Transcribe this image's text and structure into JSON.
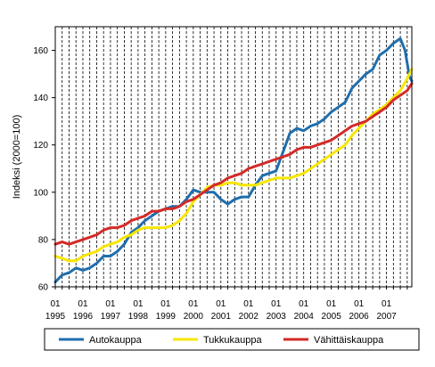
{
  "chart_data": {
    "type": "line",
    "ylabel": "Indeksi (2000=100)",
    "xlabel": "",
    "ylim": [
      60,
      170
    ],
    "yticks": [
      60,
      80,
      100,
      120,
      140,
      160
    ],
    "xlim": [
      1995.0,
      2007.917
    ],
    "xticks": [
      {
        "top": "01",
        "bottom": "1995"
      },
      {
        "top": "01",
        "bottom": "1996"
      },
      {
        "top": "01",
        "bottom": "1997"
      },
      {
        "top": "01",
        "bottom": "1998"
      },
      {
        "top": "01",
        "bottom": "1999"
      },
      {
        "top": "01",
        "bottom": "2000"
      },
      {
        "top": "01",
        "bottom": "2001"
      },
      {
        "top": "01",
        "bottom": "2002"
      },
      {
        "top": "01",
        "bottom": "2003"
      },
      {
        "top": "01",
        "bottom": "2004"
      },
      {
        "top": "01",
        "bottom": "2005"
      },
      {
        "top": "01",
        "bottom": "2006"
      },
      {
        "top": "01",
        "bottom": "2007"
      }
    ],
    "grid": "vertical dashed lines at each quarter",
    "legend_position": "bottom",
    "series": [
      {
        "name": "Autokauppa",
        "color": "#1f6ead",
        "points": [
          [
            1995.0,
            62
          ],
          [
            1995.25,
            65
          ],
          [
            1995.5,
            66
          ],
          [
            1995.75,
            68
          ],
          [
            1996.0,
            67
          ],
          [
            1996.25,
            68
          ],
          [
            1996.5,
            70
          ],
          [
            1996.75,
            73
          ],
          [
            1997.0,
            73
          ],
          [
            1997.25,
            75
          ],
          [
            1997.5,
            78
          ],
          [
            1997.75,
            83
          ],
          [
            1998.0,
            85
          ],
          [
            1998.25,
            88
          ],
          [
            1998.5,
            90
          ],
          [
            1998.75,
            92
          ],
          [
            1999.0,
            93
          ],
          [
            1999.25,
            94
          ],
          [
            1999.5,
            94
          ],
          [
            1999.75,
            97
          ],
          [
            2000.0,
            101
          ],
          [
            2000.25,
            100
          ],
          [
            2000.5,
            100
          ],
          [
            2000.75,
            100
          ],
          [
            2001.0,
            97
          ],
          [
            2001.25,
            95
          ],
          [
            2001.5,
            97
          ],
          [
            2001.75,
            98
          ],
          [
            2002.0,
            98
          ],
          [
            2002.25,
            103
          ],
          [
            2002.5,
            107
          ],
          [
            2002.75,
            108
          ],
          [
            2003.0,
            109
          ],
          [
            2003.25,
            117
          ],
          [
            2003.5,
            125
          ],
          [
            2003.75,
            127
          ],
          [
            2004.0,
            126
          ],
          [
            2004.25,
            128
          ],
          [
            2004.5,
            129
          ],
          [
            2004.75,
            131
          ],
          [
            2005.0,
            134
          ],
          [
            2005.25,
            136
          ],
          [
            2005.5,
            138
          ],
          [
            2005.75,
            144
          ],
          [
            2006.0,
            147
          ],
          [
            2006.25,
            150
          ],
          [
            2006.5,
            152
          ],
          [
            2006.75,
            158
          ],
          [
            2007.0,
            160
          ],
          [
            2007.25,
            163
          ],
          [
            2007.5,
            165
          ],
          [
            2007.67,
            160
          ],
          [
            2007.83,
            149
          ],
          [
            2007.917,
            147
          ]
        ]
      },
      {
        "name": "Tukkukauppa",
        "color": "#f7e600",
        "points": [
          [
            1995.0,
            73
          ],
          [
            1995.25,
            72
          ],
          [
            1995.5,
            71
          ],
          [
            1995.75,
            71
          ],
          [
            1996.0,
            73
          ],
          [
            1996.25,
            74
          ],
          [
            1996.5,
            75
          ],
          [
            1996.75,
            77
          ],
          [
            1997.0,
            78
          ],
          [
            1997.25,
            79
          ],
          [
            1997.5,
            81
          ],
          [
            1997.75,
            82
          ],
          [
            1998.0,
            84
          ],
          [
            1998.25,
            85
          ],
          [
            1998.5,
            85
          ],
          [
            1998.75,
            85
          ],
          [
            1999.0,
            85
          ],
          [
            1999.25,
            86
          ],
          [
            1999.5,
            88
          ],
          [
            1999.75,
            91
          ],
          [
            2000.0,
            96
          ],
          [
            2000.25,
            99
          ],
          [
            2000.5,
            102
          ],
          [
            2000.75,
            103
          ],
          [
            2001.0,
            103
          ],
          [
            2001.25,
            104
          ],
          [
            2001.5,
            104
          ],
          [
            2001.75,
            103
          ],
          [
            2002.0,
            103
          ],
          [
            2002.25,
            103
          ],
          [
            2002.5,
            104
          ],
          [
            2002.75,
            105
          ],
          [
            2003.0,
            106
          ],
          [
            2003.25,
            106
          ],
          [
            2003.5,
            106
          ],
          [
            2003.75,
            107
          ],
          [
            2004.0,
            108
          ],
          [
            2004.25,
            110
          ],
          [
            2004.5,
            112
          ],
          [
            2004.75,
            114
          ],
          [
            2005.0,
            116
          ],
          [
            2005.25,
            118
          ],
          [
            2005.5,
            120
          ],
          [
            2005.75,
            124
          ],
          [
            2006.0,
            127
          ],
          [
            2006.25,
            130
          ],
          [
            2006.5,
            133
          ],
          [
            2006.75,
            135
          ],
          [
            2007.0,
            137
          ],
          [
            2007.25,
            140
          ],
          [
            2007.5,
            143
          ],
          [
            2007.75,
            148
          ],
          [
            2007.917,
            152
          ]
        ]
      },
      {
        "name": "Vähittäiskauppa",
        "color": "#d42a27",
        "points": [
          [
            1995.0,
            78
          ],
          [
            1995.25,
            79
          ],
          [
            1995.5,
            78
          ],
          [
            1995.75,
            79
          ],
          [
            1996.0,
            80
          ],
          [
            1996.25,
            81
          ],
          [
            1996.5,
            82
          ],
          [
            1996.75,
            84
          ],
          [
            1997.0,
            85
          ],
          [
            1997.25,
            85
          ],
          [
            1997.5,
            86
          ],
          [
            1997.75,
            88
          ],
          [
            1998.0,
            89
          ],
          [
            1998.25,
            90
          ],
          [
            1998.5,
            92
          ],
          [
            1998.75,
            92
          ],
          [
            1999.0,
            93
          ],
          [
            1999.25,
            93
          ],
          [
            1999.5,
            94
          ],
          [
            1999.75,
            96
          ],
          [
            2000.0,
            97
          ],
          [
            2000.25,
            99
          ],
          [
            2000.5,
            101
          ],
          [
            2000.75,
            103
          ],
          [
            2001.0,
            104
          ],
          [
            2001.25,
            106
          ],
          [
            2001.5,
            107
          ],
          [
            2001.75,
            108
          ],
          [
            2002.0,
            110
          ],
          [
            2002.25,
            111
          ],
          [
            2002.5,
            112
          ],
          [
            2002.75,
            113
          ],
          [
            2003.0,
            114
          ],
          [
            2003.25,
            115
          ],
          [
            2003.5,
            116
          ],
          [
            2003.75,
            118
          ],
          [
            2004.0,
            119
          ],
          [
            2004.25,
            119
          ],
          [
            2004.5,
            120
          ],
          [
            2004.75,
            121
          ],
          [
            2005.0,
            122
          ],
          [
            2005.25,
            124
          ],
          [
            2005.5,
            126
          ],
          [
            2005.75,
            128
          ],
          [
            2006.0,
            129
          ],
          [
            2006.25,
            130
          ],
          [
            2006.5,
            132
          ],
          [
            2006.75,
            134
          ],
          [
            2007.0,
            136
          ],
          [
            2007.25,
            139
          ],
          [
            2007.5,
            141
          ],
          [
            2007.75,
            143
          ],
          [
            2007.917,
            146
          ]
        ]
      }
    ]
  }
}
